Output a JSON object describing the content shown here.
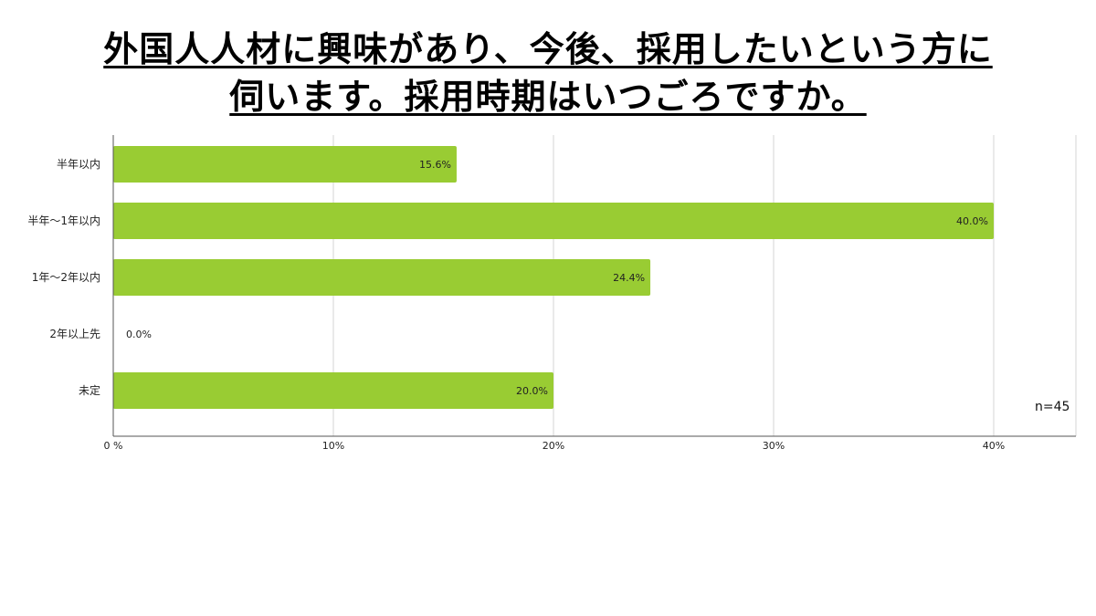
{
  "title": {
    "line1": "外国人人材に興味があり、今後、採用したいという方に",
    "line2": "伺います。採用時期はいつごろですか。"
  },
  "chart_data": {
    "type": "bar",
    "orientation": "horizontal",
    "categories": [
      "半年以内",
      "半年〜1年以内",
      "1年〜2年以内",
      "2年以上先",
      "未定"
    ],
    "values": [
      15.6,
      40.0,
      24.4,
      0.0,
      20.0
    ],
    "value_labels": [
      "15.6%",
      "40.0%",
      "24.4%",
      "0.0%",
      "20.0%"
    ],
    "xlim": [
      0,
      40
    ],
    "x_ticks": [
      0,
      10,
      20,
      30,
      40
    ],
    "x_tick_labels": [
      "0 %",
      "10%",
      "20%",
      "30%",
      "40%"
    ],
    "grid": true,
    "bar_color": "#99cc33",
    "annotation": "n=45"
  }
}
